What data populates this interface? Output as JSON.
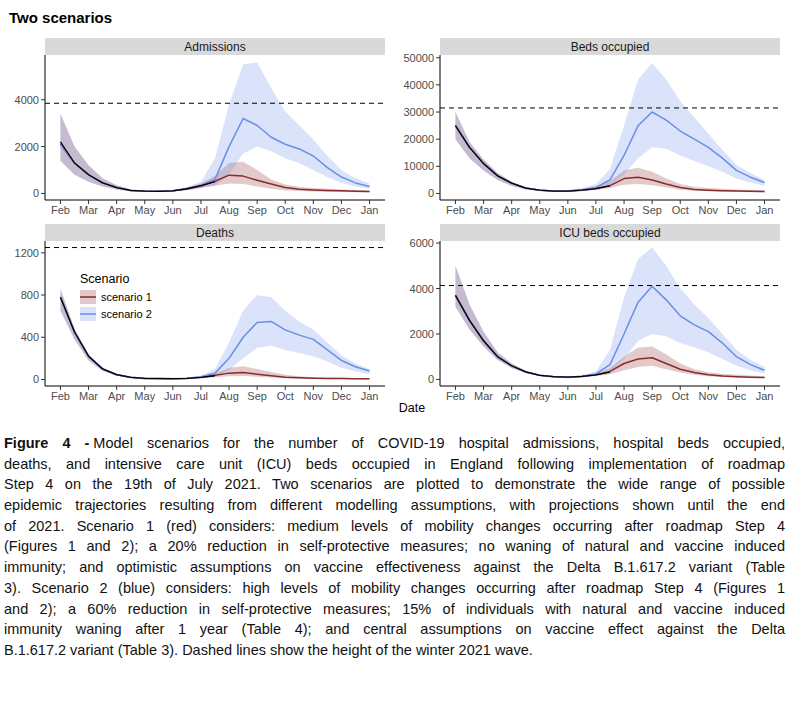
{
  "title": "Two scenarios",
  "x_label": "Date",
  "caption": {
    "label": "Figure 4 -",
    "lines": [
      "Model scenarios for the number of COVID-19 hospital admissions, hospital beds occupied,",
      "deaths, and intensive care unit (ICU) beds occupied in England following implementation of roadmap",
      "Step 4 on the 19th of July 2021. Two scenarios are plotted to demonstrate the wide range of possible",
      "epidemic trajectories resulting from different modelling assumptions, with projections shown until the end",
      "of 2021. Scenario 1 (red) considers: medium levels of mobility changes occurring after roadmap Step 4",
      "(Figures 1 and 2); a 20% reduction in self-protective measures; no waning of natural and vaccine induced",
      "immunity; and optimistic assumptions on vaccine effectiveness against the Delta B.1.617.2 variant (Table",
      "3). Scenario 2 (blue) considers: high levels of mobility changes occurring after roadmap Step 4 (Figures 1",
      "and 2); a 60% reduction in self-protective measures; 15% of individuals with natural and vaccine induced",
      "immunity waning after 1 year (Table 4); and central assumptions on vaccine effect against the Delta",
      "B.1.617.2 variant (Table 3). Dashed lines show the height of the winter 2021 wave."
    ]
  },
  "chart_data": [
    {
      "type": "line",
      "title": "Admissions",
      "grid": false,
      "categories": [
        "Feb",
        null,
        "Mar",
        null,
        "Apr",
        null,
        "May",
        null,
        "Jun",
        null,
        "Jul",
        null,
        "Aug",
        null,
        "Sep",
        null,
        "Oct",
        null,
        "Nov",
        null,
        "Dec",
        null,
        "Jan"
      ],
      "ylim": [
        -280,
        5910
      ],
      "yticks": [
        0,
        2000,
        4000
      ],
      "hline": 3850,
      "series": [
        {
          "name": "scenario 1",
          "color": "#8b2a2a",
          "values": [
            2100,
            1300,
            800,
            450,
            250,
            130,
            100,
            90,
            110,
            190,
            320,
            520,
            780,
            740,
            560,
            400,
            250,
            180,
            150,
            130,
            110,
            90,
            80
          ],
          "upper": [
            3400,
            2000,
            1200,
            650,
            350,
            180,
            120,
            110,
            140,
            250,
            420,
            750,
            1300,
            1350,
            1000,
            600,
            380,
            280,
            230,
            200,
            170,
            150,
            130
          ],
          "lower": [
            1400,
            800,
            500,
            300,
            170,
            90,
            70,
            65,
            80,
            140,
            230,
            330,
            420,
            400,
            300,
            200,
            130,
            100,
            80,
            70,
            60,
            55,
            50
          ]
        },
        {
          "name": "scenario 2",
          "color": "#6a8ee8",
          "values": [
            2100,
            1300,
            800,
            450,
            250,
            130,
            100,
            90,
            110,
            200,
            350,
            600,
            2000,
            3200,
            2900,
            2400,
            2100,
            1900,
            1600,
            1100,
            700,
            450,
            300
          ],
          "upper": [
            3400,
            2000,
            1200,
            650,
            350,
            180,
            120,
            110,
            150,
            280,
            500,
            1500,
            3800,
            5500,
            5600,
            4500,
            3500,
            2900,
            2300,
            1600,
            1000,
            650,
            420
          ],
          "lower": [
            1400,
            800,
            500,
            300,
            170,
            90,
            70,
            65,
            80,
            140,
            230,
            350,
            800,
            1700,
            2000,
            1800,
            1500,
            1300,
            1000,
            700,
            450,
            300,
            200
          ]
        },
        {
          "color": "#000000",
          "values": [
            2200,
            1300,
            800,
            450,
            250,
            130,
            100,
            90,
            110,
            200,
            330,
            500,
            null,
            null,
            null,
            null,
            null,
            null,
            null,
            null,
            null,
            null,
            null
          ]
        }
      ]
    },
    {
      "type": "line",
      "title": "Beds occupied",
      "grid": false,
      "categories": [
        "Feb",
        null,
        "Mar",
        null,
        "Apr",
        null,
        "May",
        null,
        "Jun",
        null,
        "Jul",
        null,
        "Aug",
        null,
        "Sep",
        null,
        "Oct",
        null,
        "Nov",
        null,
        "Dec",
        null,
        "Jan"
      ],
      "ylim": [
        -2400,
        51000
      ],
      "yticks": [
        0,
        10000,
        20000,
        30000,
        40000,
        50000
      ],
      "hline": 31500,
      "series": [
        {
          "name": "scenario 1",
          "color": "#8b2a2a",
          "values": [
            25000,
            17000,
            11000,
            6500,
            3800,
            2000,
            1200,
            900,
            900,
            1200,
            1800,
            2900,
            5500,
            6000,
            5000,
            3500,
            2200,
            1500,
            1200,
            1000,
            900,
            800,
            700
          ],
          "upper": [
            30000,
            19000,
            12500,
            7500,
            4300,
            2300,
            1400,
            1100,
            1200,
            1700,
            2700,
            4500,
            8500,
            9500,
            8000,
            5500,
            3500,
            2500,
            2000,
            1700,
            1500,
            1300,
            1200
          ],
          "lower": [
            20000,
            13000,
            8500,
            5000,
            2800,
            1500,
            900,
            700,
            700,
            900,
            1300,
            2000,
            3200,
            3500,
            3000,
            2200,
            1400,
            1000,
            800,
            700,
            600,
            500,
            450
          ]
        },
        {
          "name": "scenario 2",
          "color": "#6a8ee8",
          "values": [
            25000,
            17000,
            11000,
            6500,
            3800,
            2000,
            1200,
            900,
            900,
            1300,
            2200,
            5000,
            14000,
            25000,
            30000,
            27000,
            23000,
            20000,
            17000,
            13000,
            8500,
            6000,
            4000
          ],
          "upper": [
            30000,
            19000,
            12500,
            7500,
            4300,
            2300,
            1400,
            1100,
            1300,
            2000,
            3500,
            9000,
            25000,
            42000,
            48000,
            42000,
            34000,
            28000,
            22000,
            16000,
            10500,
            7500,
            5000
          ],
          "lower": [
            20000,
            13000,
            8500,
            5000,
            2800,
            1500,
            900,
            700,
            700,
            900,
            1500,
            3000,
            7000,
            13000,
            17000,
            16500,
            14000,
            12000,
            10000,
            8000,
            5500,
            4000,
            2800
          ]
        },
        {
          "color": "#000000",
          "values": [
            25000,
            17000,
            11000,
            6500,
            3800,
            2000,
            1200,
            900,
            900,
            1200,
            1800,
            2800,
            null,
            null,
            null,
            null,
            null,
            null,
            null,
            null,
            null,
            null,
            null
          ]
        }
      ]
    },
    {
      "type": "line",
      "title": "Deaths",
      "grid": false,
      "legend": "top-left",
      "legend_title": "Scenario",
      "categories": [
        "Feb",
        null,
        "Mar",
        null,
        "Apr",
        null,
        "May",
        null,
        "Jun",
        null,
        "Jul",
        null,
        "Aug",
        null,
        "Sep",
        null,
        "Oct",
        null,
        "Nov",
        null,
        "Dec",
        null,
        "Jan"
      ],
      "ylim": [
        -62,
        1312
      ],
      "yticks": [
        0,
        400,
        800,
        1200
      ],
      "hline": 1250,
      "series": [
        {
          "name": "scenario 1",
          "color": "#8b2a2a",
          "values": [
            780,
            450,
            220,
            100,
            45,
            20,
            10,
            8,
            7,
            10,
            20,
            40,
            60,
            65,
            50,
            35,
            20,
            15,
            12,
            10,
            8,
            7,
            6
          ],
          "upper": [
            860,
            480,
            240,
            110,
            50,
            23,
            12,
            10,
            9,
            14,
            28,
            60,
            110,
            125,
            100,
            70,
            45,
            30,
            22,
            18,
            15,
            12,
            10
          ],
          "lower": [
            650,
            380,
            180,
            80,
            35,
            15,
            7,
            5,
            4,
            6,
            12,
            20,
            30,
            32,
            25,
            18,
            11,
            8,
            6,
            5,
            4,
            3,
            3
          ]
        },
        {
          "name": "scenario 2",
          "color": "#6a8ee8",
          "values": [
            780,
            450,
            220,
            100,
            45,
            20,
            10,
            8,
            7,
            12,
            25,
            60,
            200,
            400,
            540,
            550,
            470,
            420,
            380,
            280,
            180,
            120,
            80
          ],
          "upper": [
            860,
            480,
            240,
            110,
            50,
            23,
            12,
            10,
            10,
            16,
            35,
            100,
            350,
            650,
            800,
            780,
            650,
            550,
            470,
            350,
            230,
            150,
            100
          ],
          "lower": [
            650,
            380,
            180,
            80,
            35,
            15,
            7,
            5,
            4,
            6,
            14,
            30,
            90,
            200,
            300,
            320,
            280,
            250,
            220,
            170,
            110,
            75,
            50
          ]
        },
        {
          "color": "#000000",
          "values": [
            780,
            450,
            220,
            100,
            45,
            20,
            10,
            8,
            7,
            10,
            20,
            35,
            null,
            null,
            null,
            null,
            null,
            null,
            null,
            null,
            null,
            null,
            null
          ]
        }
      ]
    },
    {
      "type": "line",
      "title": "ICU beds occupied",
      "grid": false,
      "categories": [
        "Feb",
        null,
        "Mar",
        null,
        "Apr",
        null,
        "May",
        null,
        "Jun",
        null,
        "Jul",
        null,
        "Aug",
        null,
        "Sep",
        null,
        "Oct",
        null,
        "Nov",
        null,
        "Dec",
        null,
        "Jan"
      ],
      "ylim": [
        -290,
        6090
      ],
      "yticks": [
        0,
        2000,
        4000,
        6000
      ],
      "hline": 4130,
      "series": [
        {
          "name": "scenario 1",
          "color": "#8b2a2a",
          "values": [
            3700,
            2600,
            1700,
            1000,
            600,
            330,
            180,
            120,
            100,
            130,
            200,
            350,
            700,
            900,
            950,
            700,
            450,
            300,
            200,
            150,
            120,
            100,
            80
          ],
          "upper": [
            5000,
            3300,
            2100,
            1200,
            700,
            380,
            210,
            140,
            120,
            160,
            260,
            500,
            1000,
            1400,
            1450,
            1100,
            700,
            450,
            320,
            250,
            200,
            170,
            140
          ],
          "lower": [
            3200,
            2200,
            1450,
            850,
            500,
            280,
            150,
            100,
            80,
            100,
            150,
            230,
            400,
            550,
            600,
            450,
            300,
            200,
            140,
            110,
            90,
            75,
            60
          ]
        },
        {
          "name": "scenario 2",
          "color": "#6a8ee8",
          "values": [
            3700,
            2600,
            1700,
            1000,
            600,
            330,
            180,
            120,
            100,
            140,
            240,
            650,
            2000,
            3400,
            4100,
            3500,
            2800,
            2400,
            2100,
            1600,
            1000,
            650,
            400
          ],
          "upper": [
            5000,
            3300,
            2100,
            1200,
            700,
            380,
            210,
            140,
            130,
            190,
            350,
            1300,
            3600,
            5300,
            5800,
            5000,
            4000,
            3300,
            2700,
            2000,
            1300,
            850,
            550
          ],
          "lower": [
            3200,
            2200,
            1450,
            850,
            500,
            280,
            150,
            100,
            80,
            100,
            160,
            300,
            900,
            1700,
            2000,
            1900,
            1600,
            1400,
            1200,
            900,
            600,
            400,
            250
          ]
        },
        {
          "color": "#000000",
          "values": [
            3700,
            2600,
            1700,
            1000,
            600,
            330,
            180,
            120,
            100,
            130,
            200,
            320,
            null,
            null,
            null,
            null,
            null,
            null,
            null,
            null,
            null,
            null,
            null
          ]
        }
      ]
    }
  ]
}
